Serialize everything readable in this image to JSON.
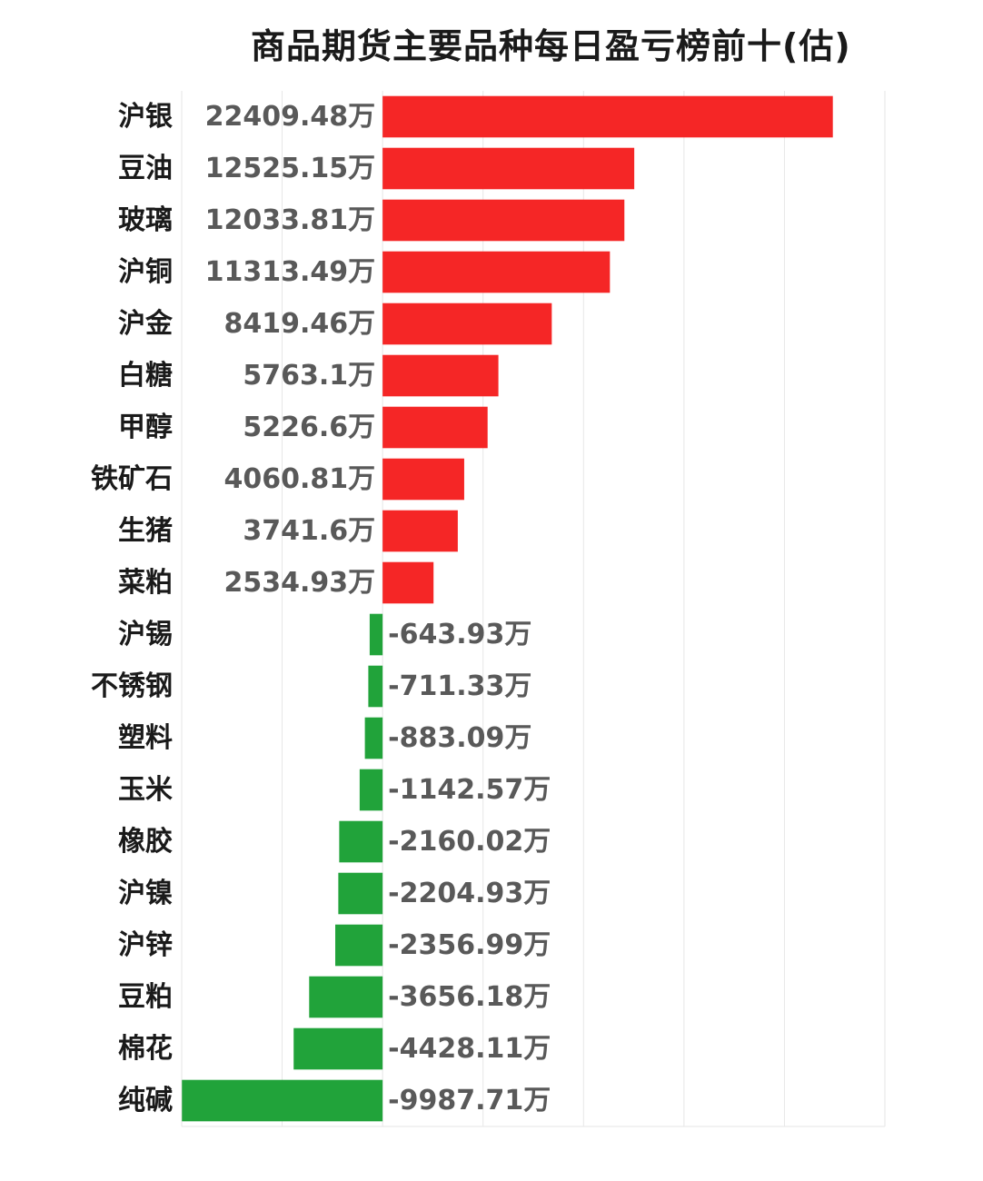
{
  "chart_data": {
    "type": "bar",
    "orientation": "horizontal",
    "title": "商品期货主要品种每日盈亏榜前十(估)",
    "unit": "万",
    "categories": [
      "沪银",
      "豆油",
      "玻璃",
      "沪铜",
      "沪金",
      "白糖",
      "甲醇",
      "铁矿石",
      "生猪",
      "菜粕",
      "沪锡",
      "不锈钢",
      "塑料",
      "玉米",
      "橡胶",
      "沪镍",
      "沪锌",
      "豆粕",
      "棉花",
      "纯碱"
    ],
    "values": [
      22409.48,
      12525.15,
      12033.81,
      11313.49,
      8419.46,
      5763.1,
      5226.6,
      4060.81,
      3741.6,
      2534.93,
      -643.93,
      -711.33,
      -883.09,
      -1142.57,
      -2160.02,
      -2204.93,
      -2356.99,
      -3656.18,
      -4428.11,
      -9987.71
    ],
    "value_labels": [
      "22409.48万",
      "12525.15万",
      "12033.81万",
      "11313.49万",
      "8419.46万",
      "5763.1万",
      "5226.6万",
      "4060.81万",
      "3741.6万",
      "2534.93万",
      "-643.93万",
      "-711.33万",
      "-883.09万",
      "-1142.57万",
      "-2160.02万",
      "-2204.93万",
      "-2356.99万",
      "-3656.18万",
      "-4428.11万",
      "-9987.71万"
    ],
    "xlim": [
      -10000,
      25000
    ],
    "grid": true,
    "legend": "none",
    "colors": {
      "positive": "#f52626",
      "negative": "#21a33a",
      "grid": "#e6e6e6"
    }
  }
}
